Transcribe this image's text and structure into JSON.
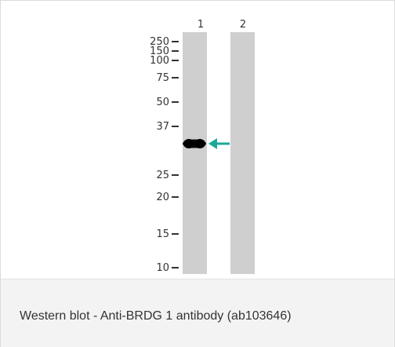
{
  "figure": {
    "lanes": [
      {
        "label": "1",
        "has_band": true
      },
      {
        "label": "2",
        "has_band": false
      }
    ],
    "markers": [
      "250",
      "150",
      "100",
      "75",
      "50",
      "37",
      "25",
      "20",
      "15",
      "10"
    ],
    "lane_color": "#cfcfcf",
    "band_color": "#111111",
    "arrow_color": "#1aa89a"
  },
  "caption": "Western blot - Anti-BRDG 1 antibody (ab103646)"
}
